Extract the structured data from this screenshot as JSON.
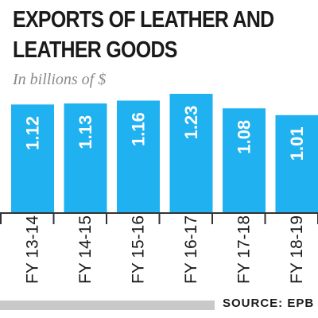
{
  "header": {
    "title_line1": "EXPORTS OF LEATHER AND",
    "title_line2": "LEATHER GOODS",
    "subtitle": "In billions of $"
  },
  "footer": {
    "source": "SOURCE: EPB"
  },
  "colors": {
    "bar": "#1fb1f0",
    "bar_label": "#ffffff",
    "axis": "#333333",
    "tick_label": "#1a1a1a"
  },
  "chart_data": {
    "type": "bar",
    "title": "EXPORTS OF LEATHER AND LEATHER GOODS",
    "subtitle": "In billions of $",
    "categories": [
      "FY 13-14",
      "FY 14-15",
      "FY 15-16",
      "FY 16-17",
      "FY 17-18",
      "FY 18-19"
    ],
    "values": [
      1.12,
      1.13,
      1.16,
      1.23,
      1.08,
      1.01
    ],
    "value_labels": [
      "1.12",
      "1.13",
      "1.16",
      "1.23",
      "1.08",
      "1.01"
    ],
    "xlabel": "",
    "ylabel": "",
    "ylim": [
      0,
      1.23
    ],
    "grid": false,
    "legend": "none"
  }
}
